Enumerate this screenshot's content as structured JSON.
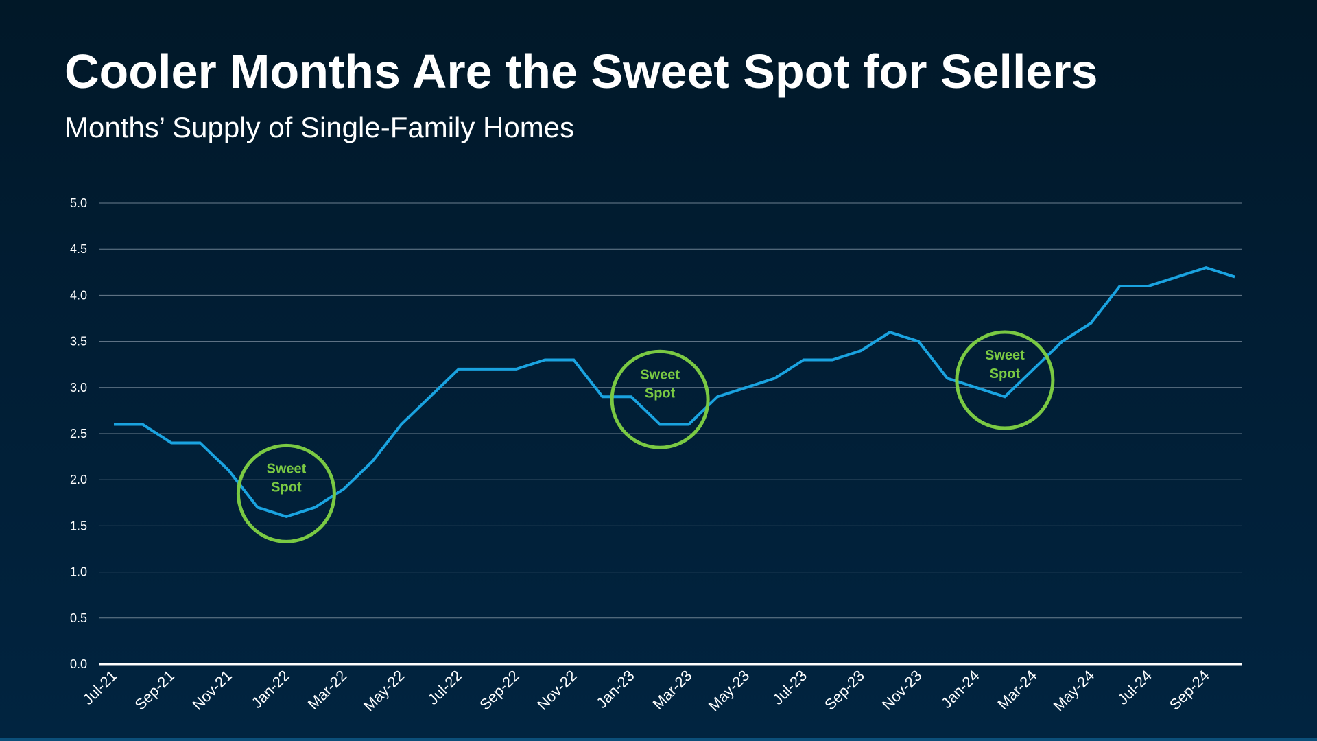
{
  "slide": {
    "title": "Cooler Months Are the Sweet Spot for Sellers",
    "subtitle": "Months’ Supply of Single-Family Homes"
  },
  "colors": {
    "background": "#011d33",
    "line": "#1aa3e0",
    "grid": "#6b7f8f",
    "axis": "#ffffff",
    "text": "#ffffff",
    "highlight": "#7ac943"
  },
  "chart_data": {
    "type": "line",
    "title": "Months’ Supply of Single-Family Homes",
    "xlabel": "",
    "ylabel": "",
    "ylim": [
      0,
      5
    ],
    "y_ticks": [
      "0.0",
      "0.5",
      "1.0",
      "1.5",
      "2.0",
      "2.5",
      "3.0",
      "3.5",
      "4.0",
      "4.5",
      "5.0"
    ],
    "grid": true,
    "categories": [
      "Jul-21",
      "Aug-21",
      "Sep-21",
      "Oct-21",
      "Nov-21",
      "Dec-21",
      "Jan-22",
      "Feb-22",
      "Mar-22",
      "Apr-22",
      "May-22",
      "Jun-22",
      "Jul-22",
      "Aug-22",
      "Sep-22",
      "Oct-22",
      "Nov-22",
      "Dec-22",
      "Jan-23",
      "Feb-23",
      "Mar-23",
      "Apr-23",
      "May-23",
      "Jun-23",
      "Jul-23",
      "Aug-23",
      "Sep-23",
      "Oct-23",
      "Nov-23",
      "Dec-23",
      "Jan-24",
      "Feb-24",
      "Mar-24",
      "Apr-24",
      "May-24",
      "Jun-24",
      "Jul-24",
      "Aug-24",
      "Sep-24",
      "Oct-24"
    ],
    "x_tick_labels": [
      "Jul-21",
      "Sep-21",
      "Nov-21",
      "Jan-22",
      "Mar-22",
      "May-22",
      "Jul-22",
      "Sep-22",
      "Nov-22",
      "Jan-23",
      "Mar-23",
      "May-23",
      "Jul-23",
      "Sep-23",
      "Nov-23",
      "Jan-24",
      "Mar-24",
      "May-24",
      "Jul-24",
      "Sep-24"
    ],
    "series": [
      {
        "name": "Months’ Supply",
        "values": [
          2.6,
          2.6,
          2.4,
          2.4,
          2.1,
          1.7,
          1.6,
          1.7,
          1.9,
          2.2,
          2.6,
          2.9,
          3.2,
          3.2,
          3.2,
          3.3,
          3.3,
          2.9,
          2.9,
          2.6,
          2.6,
          2.9,
          3.0,
          3.1,
          3.3,
          3.3,
          3.4,
          3.6,
          3.5,
          3.1,
          3.0,
          2.9,
          3.2,
          3.5,
          3.7,
          4.1,
          4.1,
          4.2,
          4.3,
          4.2
        ]
      }
    ],
    "annotations": [
      {
        "label_line1": "Sweet",
        "label_line2": "Spot",
        "x_category": "Jan-22",
        "y_value": 1.85
      },
      {
        "label_line1": "Sweet",
        "label_line2": "Spot",
        "x_category": "Feb-23",
        "y_value": 2.87
      },
      {
        "label_line1": "Sweet",
        "label_line2": "Spot",
        "x_category": "Feb-24",
        "y_value": 3.08
      }
    ]
  }
}
